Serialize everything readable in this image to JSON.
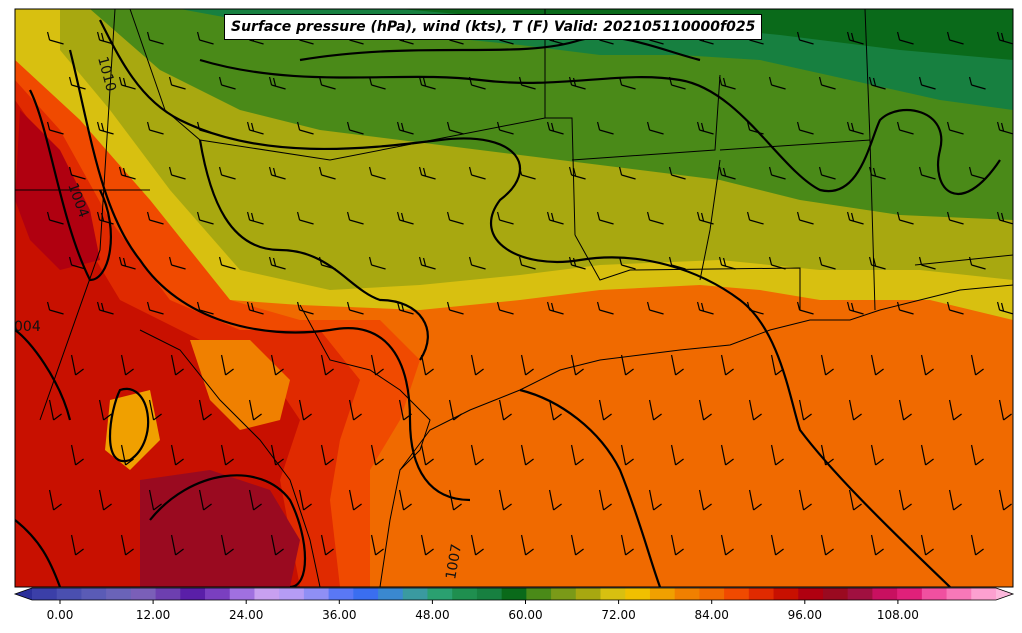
{
  "title": "Surface pressure (hPa), wind (kts), T (F) Valid: 202105110000f025",
  "isobar_labels": [
    "1010",
    "1004",
    "004",
    "1007"
  ],
  "colorbar": {
    "ticks": [
      "0.00",
      "12.00",
      "24.00",
      "36.00",
      "48.00",
      "60.00",
      "72.00",
      "84.00",
      "96.00",
      "108.00"
    ],
    "colors": [
      "#3b3fa8",
      "#4a4fb0",
      "#5a5bb6",
      "#6a63b8",
      "#7a5fb8",
      "#6d3fb0",
      "#5a1fa8",
      "#7a3fc0",
      "#a070e0",
      "#c8a0f0",
      "#b59cf5",
      "#8f8ff5",
      "#5a78f5",
      "#3a6ef0",
      "#3a88d0",
      "#3a9aa0",
      "#2aa070",
      "#1f8f4f",
      "#178040",
      "#0a6a1a",
      "#4a8a18",
      "#7a9a18",
      "#a8a810",
      "#d8c010",
      "#f0c000",
      "#f0a000",
      "#f08000",
      "#f06a00",
      "#f04a00",
      "#e02a00",
      "#c81000",
      "#b00010",
      "#9a0a20",
      "#a01040",
      "#c81060",
      "#e0207a",
      "#f050a0",
      "#f878b8",
      "#fca0d0"
    ]
  }
}
